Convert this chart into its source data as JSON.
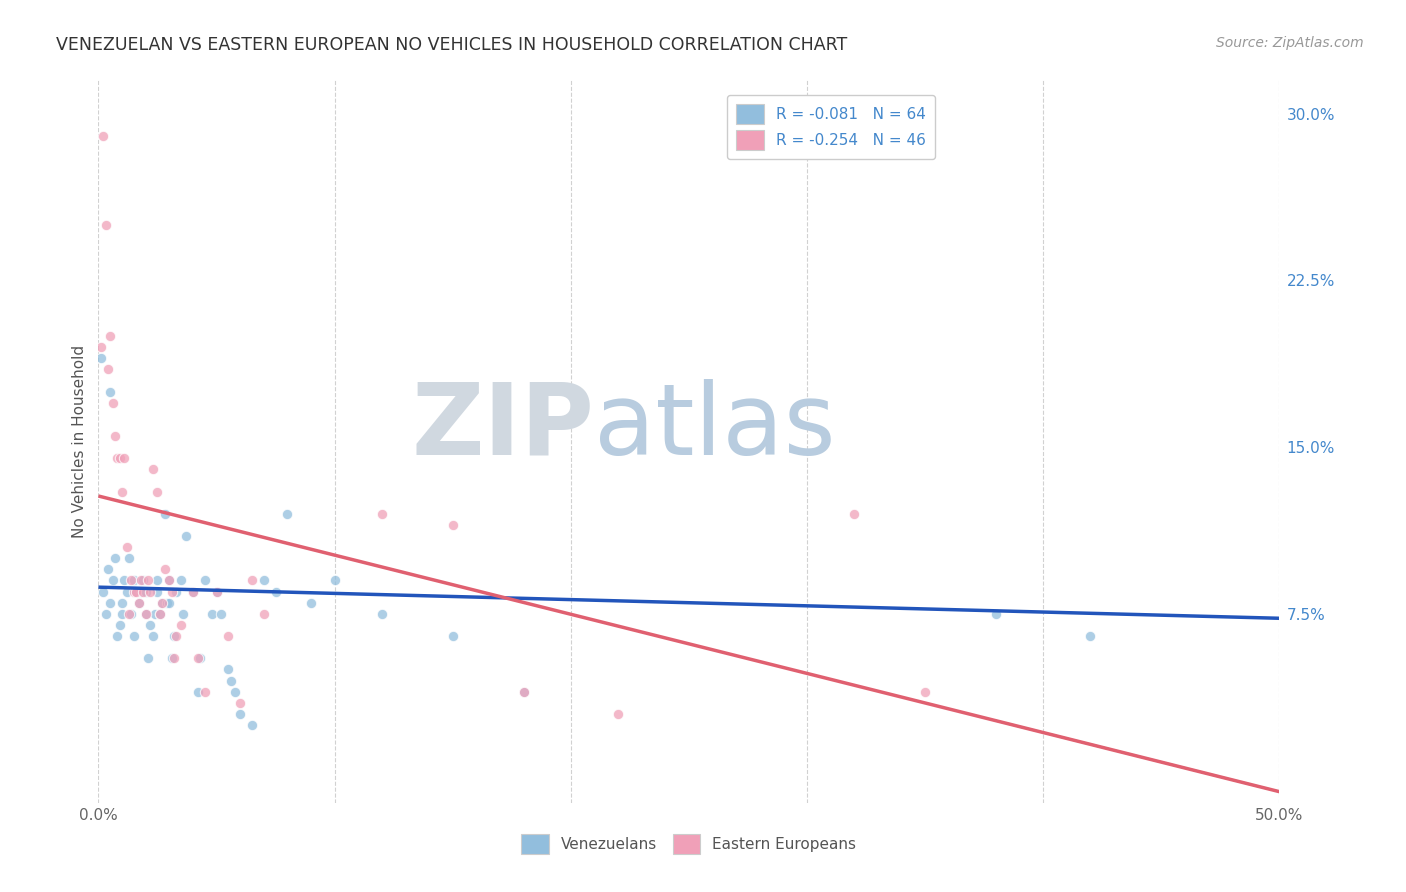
{
  "title": "VENEZUELAN VS EASTERN EUROPEAN NO VEHICLES IN HOUSEHOLD CORRELATION CHART",
  "source": "Source: ZipAtlas.com",
  "ylabel": "No Vehicles in Household",
  "watermark_zip": "ZIP",
  "watermark_atlas": "atlas",
  "xlim": [
    0.0,
    0.5
  ],
  "ylim": [
    -0.01,
    0.315
  ],
  "yticks": [
    0.075,
    0.15,
    0.225,
    0.3
  ],
  "ytick_labels": [
    "7.5%",
    "15.0%",
    "22.5%",
    "30.0%"
  ],
  "xticks": [
    0.0,
    0.1,
    0.2,
    0.3,
    0.4,
    0.5
  ],
  "xtick_labels": [
    "0.0%",
    "",
    "",
    "",
    "",
    "50.0%"
  ],
  "legend_entries": [
    {
      "label": "R = -0.081   N = 64",
      "color": "#a8c8e8"
    },
    {
      "label": "R = -0.254   N = 46",
      "color": "#f4b0c0"
    }
  ],
  "blue_line": {
    "x0": 0.0,
    "y0": 0.087,
    "x1": 0.5,
    "y1": 0.073
  },
  "pink_line": {
    "x0": 0.0,
    "y0": 0.128,
    "x1": 0.5,
    "y1": -0.005
  },
  "venezuelan_x": [
    0.001,
    0.002,
    0.003,
    0.004,
    0.005,
    0.005,
    0.006,
    0.007,
    0.008,
    0.009,
    0.01,
    0.01,
    0.011,
    0.012,
    0.013,
    0.014,
    0.015,
    0.015,
    0.016,
    0.017,
    0.018,
    0.019,
    0.02,
    0.02,
    0.021,
    0.022,
    0.023,
    0.024,
    0.025,
    0.025,
    0.026,
    0.027,
    0.028,
    0.029,
    0.03,
    0.03,
    0.031,
    0.032,
    0.033,
    0.035,
    0.036,
    0.037,
    0.04,
    0.042,
    0.043,
    0.045,
    0.048,
    0.05,
    0.052,
    0.055,
    0.056,
    0.058,
    0.06,
    0.065,
    0.07,
    0.075,
    0.08,
    0.09,
    0.1,
    0.12,
    0.15,
    0.18,
    0.38,
    0.42
  ],
  "venezuelan_y": [
    0.19,
    0.085,
    0.075,
    0.095,
    0.08,
    0.175,
    0.09,
    0.1,
    0.065,
    0.07,
    0.08,
    0.075,
    0.09,
    0.085,
    0.1,
    0.075,
    0.065,
    0.09,
    0.085,
    0.08,
    0.085,
    0.09,
    0.075,
    0.085,
    0.055,
    0.07,
    0.065,
    0.075,
    0.085,
    0.09,
    0.075,
    0.08,
    0.12,
    0.08,
    0.08,
    0.09,
    0.055,
    0.065,
    0.085,
    0.09,
    0.075,
    0.11,
    0.085,
    0.04,
    0.055,
    0.09,
    0.075,
    0.085,
    0.075,
    0.05,
    0.045,
    0.04,
    0.03,
    0.025,
    0.09,
    0.085,
    0.12,
    0.08,
    0.09,
    0.075,
    0.065,
    0.04,
    0.075,
    0.065
  ],
  "eastern_x": [
    0.001,
    0.002,
    0.003,
    0.004,
    0.005,
    0.006,
    0.007,
    0.008,
    0.009,
    0.01,
    0.011,
    0.012,
    0.013,
    0.014,
    0.015,
    0.016,
    0.017,
    0.018,
    0.019,
    0.02,
    0.021,
    0.022,
    0.023,
    0.025,
    0.026,
    0.027,
    0.028,
    0.03,
    0.031,
    0.032,
    0.033,
    0.035,
    0.04,
    0.042,
    0.045,
    0.05,
    0.055,
    0.06,
    0.065,
    0.07,
    0.12,
    0.15,
    0.18,
    0.22,
    0.32,
    0.35
  ],
  "eastern_y": [
    0.195,
    0.29,
    0.25,
    0.185,
    0.2,
    0.17,
    0.155,
    0.145,
    0.145,
    0.13,
    0.145,
    0.105,
    0.075,
    0.09,
    0.085,
    0.085,
    0.08,
    0.09,
    0.085,
    0.075,
    0.09,
    0.085,
    0.14,
    0.13,
    0.075,
    0.08,
    0.095,
    0.09,
    0.085,
    0.055,
    0.065,
    0.07,
    0.085,
    0.055,
    0.04,
    0.085,
    0.065,
    0.035,
    0.09,
    0.075,
    0.12,
    0.115,
    0.04,
    0.03,
    0.12,
    0.04
  ],
  "blue_color": "#92bedd",
  "pink_color": "#f0a0b8",
  "blue_line_color": "#2255bb",
  "pink_line_color": "#e06070",
  "background_color": "#ffffff",
  "grid_color": "#cccccc",
  "title_color": "#333333",
  "axis_label_color": "#555555",
  "right_axis_color": "#4488cc",
  "watermark_zip_color": "#d0d8e0",
  "watermark_atlas_color": "#b8ccdf",
  "title_fontsize": 12.5,
  "source_fontsize": 10,
  "axis_fontsize": 11,
  "tick_fontsize": 11,
  "legend_fontsize": 11,
  "marker_size": 55
}
